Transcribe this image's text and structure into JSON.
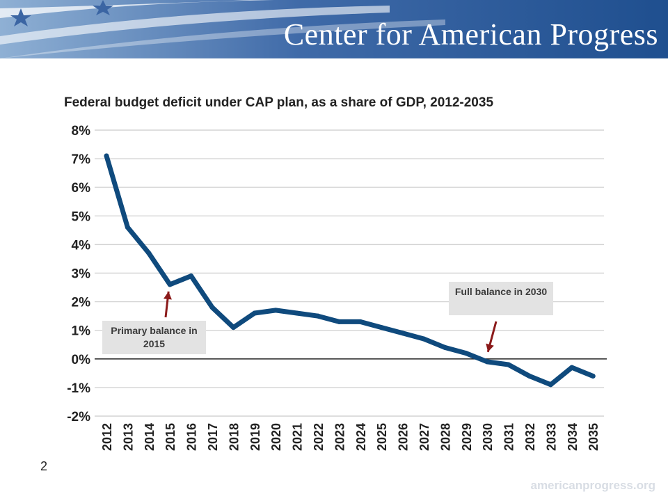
{
  "header": {
    "organization": "Center for American Progress"
  },
  "footer": {
    "slide_number": "2",
    "url": "americanprogress.org"
  },
  "colors": {
    "banner": "#2b5797",
    "line": "#0f4a7d",
    "arrow": "#8b1a1a",
    "callout_bg": "#e3e3e3"
  },
  "annotations": [
    {
      "id": "primary",
      "text": "Primary balance in 2015",
      "target_year": "2015"
    },
    {
      "id": "full",
      "text": "Full balance in 2030",
      "target_year": "2030"
    }
  ],
  "chart_data": {
    "type": "line",
    "title": "Federal budget deficit under CAP plan, as a share of GDP, 2012-2035",
    "xlabel": "",
    "ylabel": "",
    "ylim": [
      -2,
      8
    ],
    "y_ticks": [
      8,
      7,
      6,
      5,
      4,
      3,
      2,
      1,
      0,
      -1,
      -2
    ],
    "y_tick_labels": [
      "8%",
      "7%",
      "6%",
      "5%",
      "4%",
      "3%",
      "2%",
      "1%",
      "0%",
      "-1%",
      "-2%"
    ],
    "grid": true,
    "legend": "none",
    "categories": [
      "2012",
      "2013",
      "2014",
      "2015",
      "2016",
      "2017",
      "2018",
      "2019",
      "2020",
      "2021",
      "2022",
      "2023",
      "2024",
      "2025",
      "2026",
      "2027",
      "2028",
      "2029",
      "2030",
      "2031",
      "2032",
      "2033",
      "2034",
      "2035"
    ],
    "series": [
      {
        "values": [
          7.1,
          4.6,
          3.7,
          2.6,
          2.9,
          1.8,
          1.1,
          1.6,
          1.7,
          1.6,
          1.5,
          1.3,
          1.3,
          1.1,
          0.9,
          0.7,
          0.4,
          0.2,
          -0.1,
          -0.2,
          -0.6,
          -0.9,
          -0.3,
          -0.6
        ]
      }
    ]
  }
}
